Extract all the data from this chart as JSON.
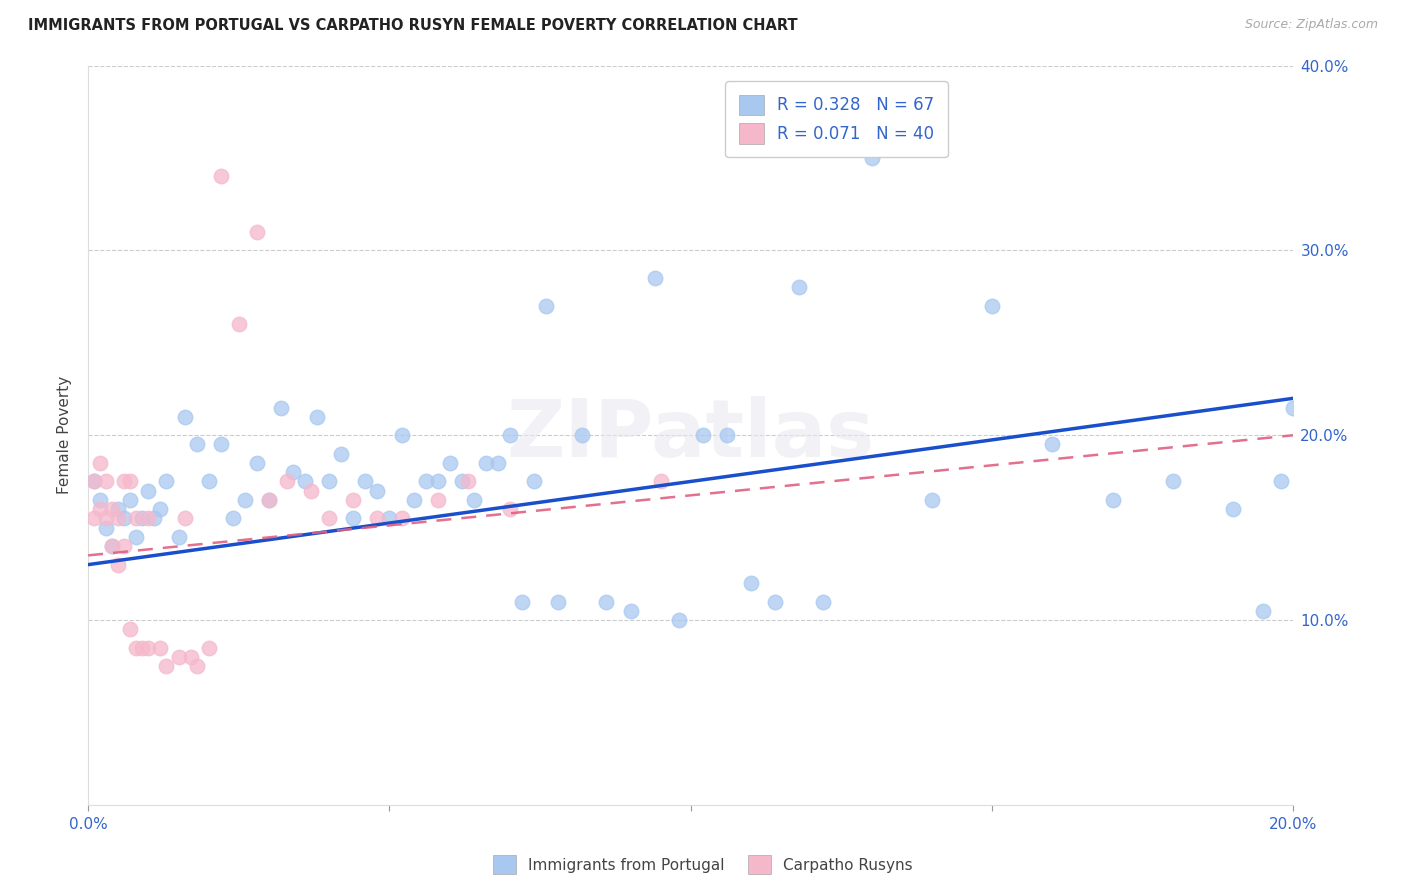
{
  "title": "IMMIGRANTS FROM PORTUGAL VS CARPATHO RUSYN FEMALE POVERTY CORRELATION CHART",
  "source": "Source: ZipAtlas.com",
  "ylabel": "Female Poverty",
  "xlim": [
    0,
    0.2
  ],
  "ylim": [
    0,
    0.4
  ],
  "xticks": [
    0.0,
    0.05,
    0.1,
    0.15,
    0.2
  ],
  "yticks": [
    0.0,
    0.1,
    0.2,
    0.3,
    0.4
  ],
  "legend_labels": [
    "Immigrants from Portugal",
    "Carpatho Rusyns"
  ],
  "R_blue": 0.328,
  "N_blue": 67,
  "R_pink": 0.071,
  "N_pink": 40,
  "blue_color": "#a8c8f0",
  "pink_color": "#f5b8cb",
  "blue_line_color": "#1a4fcc",
  "pink_line_color": "#e06080",
  "watermark": "ZIPatlas",
  "blue_x": [
    0.001,
    0.002,
    0.003,
    0.004,
    0.005,
    0.006,
    0.007,
    0.008,
    0.009,
    0.01,
    0.011,
    0.012,
    0.013,
    0.015,
    0.016,
    0.018,
    0.02,
    0.022,
    0.024,
    0.026,
    0.028,
    0.03,
    0.032,
    0.034,
    0.036,
    0.038,
    0.04,
    0.042,
    0.044,
    0.046,
    0.048,
    0.05,
    0.052,
    0.054,
    0.056,
    0.058,
    0.06,
    0.062,
    0.064,
    0.066,
    0.068,
    0.07,
    0.072,
    0.074,
    0.076,
    0.078,
    0.082,
    0.086,
    0.09,
    0.094,
    0.098,
    0.102,
    0.106,
    0.11,
    0.114,
    0.118,
    0.122,
    0.13,
    0.14,
    0.15,
    0.16,
    0.17,
    0.18,
    0.19,
    0.195,
    0.198,
    0.2
  ],
  "blue_y": [
    0.175,
    0.165,
    0.15,
    0.14,
    0.16,
    0.155,
    0.165,
    0.145,
    0.155,
    0.17,
    0.155,
    0.16,
    0.175,
    0.145,
    0.21,
    0.195,
    0.175,
    0.195,
    0.155,
    0.165,
    0.185,
    0.165,
    0.215,
    0.18,
    0.175,
    0.21,
    0.175,
    0.19,
    0.155,
    0.175,
    0.17,
    0.155,
    0.2,
    0.165,
    0.175,
    0.175,
    0.185,
    0.175,
    0.165,
    0.185,
    0.185,
    0.2,
    0.11,
    0.175,
    0.27,
    0.11,
    0.2,
    0.11,
    0.105,
    0.285,
    0.1,
    0.2,
    0.2,
    0.12,
    0.11,
    0.28,
    0.11,
    0.35,
    0.165,
    0.27,
    0.195,
    0.165,
    0.175,
    0.16,
    0.105,
    0.175,
    0.215
  ],
  "pink_x": [
    0.001,
    0.001,
    0.002,
    0.002,
    0.003,
    0.003,
    0.004,
    0.004,
    0.005,
    0.005,
    0.006,
    0.006,
    0.007,
    0.007,
    0.008,
    0.008,
    0.009,
    0.01,
    0.01,
    0.012,
    0.013,
    0.015,
    0.016,
    0.017,
    0.018,
    0.02,
    0.022,
    0.025,
    0.028,
    0.03,
    0.033,
    0.037,
    0.04,
    0.044,
    0.048,
    0.052,
    0.058,
    0.063,
    0.07,
    0.095
  ],
  "pink_y": [
    0.155,
    0.175,
    0.16,
    0.185,
    0.155,
    0.175,
    0.14,
    0.16,
    0.13,
    0.155,
    0.14,
    0.175,
    0.095,
    0.175,
    0.085,
    0.155,
    0.085,
    0.085,
    0.155,
    0.085,
    0.075,
    0.08,
    0.155,
    0.08,
    0.075,
    0.085,
    0.34,
    0.26,
    0.31,
    0.165,
    0.175,
    0.17,
    0.155,
    0.165,
    0.155,
    0.155,
    0.165,
    0.175,
    0.16,
    0.175
  ],
  "blue_trend_x": [
    0.0,
    0.2
  ],
  "blue_trend_y": [
    0.13,
    0.22
  ],
  "pink_trend_x": [
    0.0,
    0.2
  ],
  "pink_trend_y": [
    0.135,
    0.2
  ]
}
